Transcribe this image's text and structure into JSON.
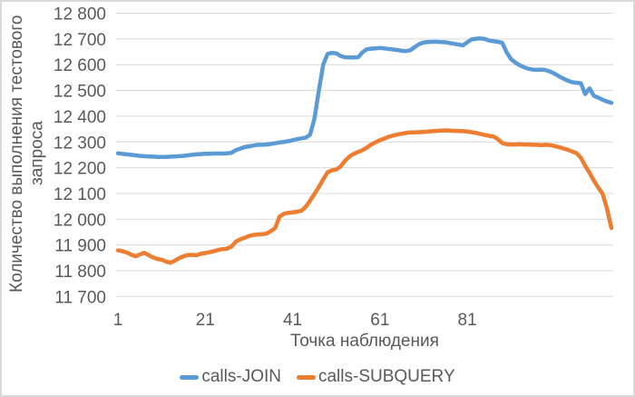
{
  "chart": {
    "y_axis": {
      "title_line1": "Количество выполнения тестового",
      "title_line2": "запроса"
    },
    "x_axis": {
      "title": "Точка наблюдения"
    },
    "legend": [
      {
        "label": "calls-JOIN",
        "color": "#5B9BD5"
      },
      {
        "label": "calls-SUBQUERY",
        "color": "#ED7D31"
      }
    ],
    "colors": {
      "text": "#595959",
      "gridline": "#D9D9D9",
      "border": "#D9D9D9",
      "series_join": "#5B9BD5",
      "series_subquery": "#ED7D31"
    }
  },
  "chart_data": {
    "type": "line",
    "xlabel": "Точка наблюдения",
    "ylabel": "Количество выполнения тестового запроса",
    "ylim": [
      11700,
      12800
    ],
    "grid": true,
    "legend_position": "bottom",
    "x_ticks": [
      1,
      21,
      41,
      61,
      81
    ],
    "y_ticks": [
      {
        "value": 12800,
        "label": "12 800"
      },
      {
        "value": 12700,
        "label": "12 700"
      },
      {
        "value": 12600,
        "label": "12 600"
      },
      {
        "value": 12500,
        "label": "12 500"
      },
      {
        "value": 12400,
        "label": "12 400"
      },
      {
        "value": 12300,
        "label": "12 300"
      },
      {
        "value": 12200,
        "label": "12 200"
      },
      {
        "value": 12100,
        "label": "12 100"
      },
      {
        "value": 12000,
        "label": "12 000"
      },
      {
        "value": 11900,
        "label": "11 900"
      },
      {
        "value": 11800,
        "label": "11 800"
      },
      {
        "value": 11700,
        "label": "11 700"
      }
    ],
    "series": [
      {
        "name": "calls-JOIN",
        "color": "#5B9BD5",
        "values": [
          12256,
          12254,
          12252,
          12250,
          12248,
          12246,
          12245,
          12244,
          12243,
          12242,
          12242,
          12242,
          12243,
          12244,
          12245,
          12246,
          12248,
          12250,
          12252,
          12253,
          12254,
          12254,
          12255,
          12255,
          12255,
          12256,
          12258,
          12268,
          12274,
          12280,
          12283,
          12286,
          12289,
          12289,
          12290,
          12292,
          12295,
          12298,
          12300,
          12303,
          12307,
          12311,
          12314,
          12317,
          12328,
          12390,
          12500,
          12600,
          12642,
          12646,
          12644,
          12634,
          12629,
          12628,
          12628,
          12629,
          12648,
          12660,
          12662,
          12663,
          12665,
          12663,
          12661,
          12659,
          12657,
          12654,
          12653,
          12656,
          12669,
          12680,
          12686,
          12688,
          12689,
          12689,
          12688,
          12687,
          12684,
          12681,
          12678,
          12675,
          12687,
          12698,
          12701,
          12702,
          12700,
          12694,
          12691,
          12689,
          12685,
          12648,
          12622,
          12608,
          12598,
          12590,
          12584,
          12581,
          12580,
          12581,
          12579,
          12573,
          12565,
          12555,
          12546,
          12538,
          12532,
          12530,
          12528,
          12486,
          12508,
          12479,
          12472,
          12464,
          12457,
          12452
        ]
      },
      {
        "name": "calls-SUBQUERY",
        "color": "#ED7D31",
        "values": [
          11879,
          11876,
          11871,
          11863,
          11856,
          11863,
          11870,
          11861,
          11852,
          11846,
          11843,
          11836,
          11831,
          11839,
          11849,
          11856,
          11861,
          11862,
          11860,
          11866,
          11869,
          11872,
          11876,
          11881,
          11884,
          11886,
          11894,
          11913,
          11922,
          11928,
          11935,
          11939,
          11941,
          11942,
          11944,
          11954,
          11966,
          12010,
          12021,
          12025,
          12027,
          12029,
          12033,
          12048,
          12072,
          12098,
          12125,
          12155,
          12182,
          12190,
          12193,
          12205,
          12227,
          12243,
          12254,
          12261,
          12268,
          12278,
          12290,
          12299,
          12307,
          12313,
          12320,
          12325,
          12329,
          12332,
          12335,
          12337,
          12337,
          12338,
          12339,
          12340,
          12342,
          12343,
          12344,
          12345,
          12344,
          12343,
          12343,
          12342,
          12340,
          12338,
          12335,
          12331,
          12327,
          12324,
          12321,
          12311,
          12296,
          12291,
          12290,
          12290,
          12291,
          12290,
          12290,
          12289,
          12289,
          12288,
          12289,
          12288,
          12284,
          12280,
          12275,
          12270,
          12263,
          12257,
          12239,
          12208,
          12180,
          12150,
          12122,
          12098,
          12040,
          11966
        ]
      }
    ]
  }
}
